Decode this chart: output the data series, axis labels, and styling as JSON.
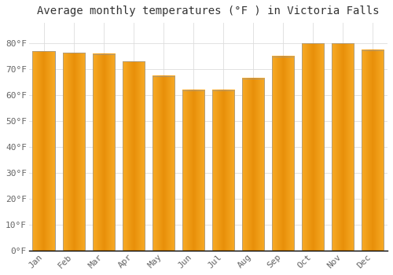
{
  "title": "Average monthly temperatures (°F ) in Victoria Falls",
  "months": [
    "Jan",
    "Feb",
    "Mar",
    "Apr",
    "May",
    "Jun",
    "Jul",
    "Aug",
    "Sep",
    "Oct",
    "Nov",
    "Dec"
  ],
  "values": [
    77,
    76.5,
    76,
    73,
    67.5,
    62,
    62,
    66.5,
    75,
    80,
    80,
    77.5
  ],
  "bar_color": "#FFA500",
  "bar_edge_color": "#888888",
  "background_color": "#ffffff",
  "ylim": [
    0,
    88
  ],
  "yticks": [
    0,
    10,
    20,
    30,
    40,
    50,
    60,
    70,
    80
  ],
  "grid_color": "#dddddd",
  "title_fontsize": 10,
  "tick_fontsize": 8,
  "tick_color": "#666666",
  "title_color": "#333333"
}
